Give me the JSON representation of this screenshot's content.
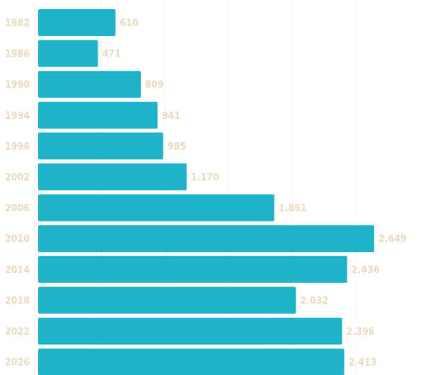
{
  "chart_data": {
    "type": "bar",
    "orientation": "horizontal",
    "title": "",
    "xlabel": "",
    "ylabel": "",
    "categories": [
      "1982",
      "1986",
      "1990",
      "1994",
      "1998",
      "2002",
      "2006",
      "2010",
      "2014",
      "2018",
      "2022",
      "2026"
    ],
    "values": [
      610,
      471,
      809,
      941,
      985,
      1170,
      1861,
      2649,
      2436,
      2032,
      2396,
      2413
    ],
    "value_labels": [
      "610",
      "471",
      "809",
      "941",
      "985",
      "1.170",
      "1.861",
      "2.649",
      "2.436",
      "2.032",
      "2.396",
      "2.413"
    ],
    "xlim": [
      0,
      3000
    ],
    "grid": true,
    "bar_color": "#20B2C8",
    "label_color": "#EBD9BE"
  }
}
